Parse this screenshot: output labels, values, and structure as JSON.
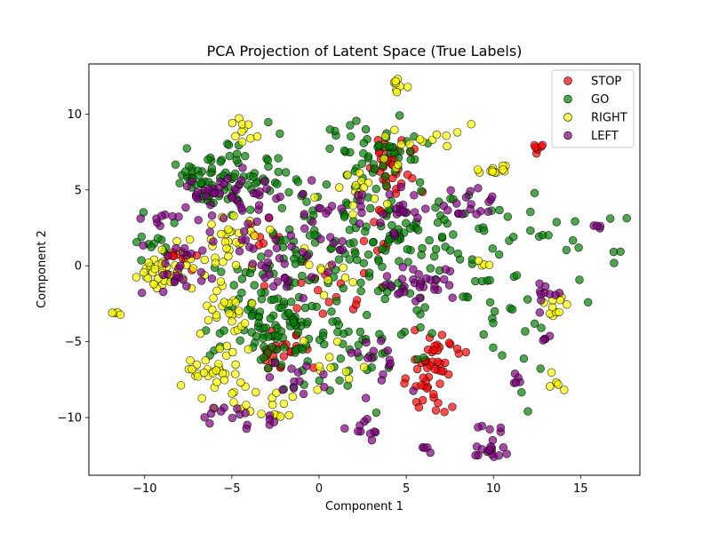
{
  "chart_data": {
    "type": "scatter",
    "title": "PCA Projection of Latent Space (True Labels)",
    "xlabel": "Component 1",
    "ylabel": "Component 2",
    "xlim": [
      -13.2,
      18.4
    ],
    "ylim": [
      -13.8,
      13.3
    ],
    "xticks": [
      -10,
      -5,
      0,
      5,
      10,
      15
    ],
    "yticks": [
      -10,
      -5,
      0,
      5,
      10
    ],
    "grid": false,
    "legend_position": "top-right",
    "series": [
      {
        "name": "STOP",
        "color": "#ff0000",
        "clusters": [
          {
            "cx": 4.2,
            "cy": 6.5,
            "sx": 0.7,
            "sy": 0.9,
            "n": 35
          },
          {
            "cx": 6.3,
            "cy": -7.3,
            "sx": 0.6,
            "sy": 1.3,
            "n": 40
          },
          {
            "cx": 7.0,
            "cy": -5.3,
            "sx": 0.5,
            "sy": 0.4,
            "n": 12
          },
          {
            "cx": -2.2,
            "cy": -5.6,
            "sx": 0.8,
            "sy": 0.8,
            "n": 25
          },
          {
            "cx": -7.7,
            "cy": 0.6,
            "sx": 0.5,
            "sy": 0.4,
            "n": 10
          },
          {
            "cx": -3.2,
            "cy": 2.0,
            "sx": 0.5,
            "sy": 0.6,
            "n": 8
          },
          {
            "cx": 12.5,
            "cy": 7.9,
            "sx": 0.3,
            "sy": 0.2,
            "n": 6
          },
          {
            "cx": 1.5,
            "cy": -2.0,
            "sx": 1.6,
            "sy": 0.9,
            "n": 10
          },
          {
            "cx": 3.8,
            "cy": 2.2,
            "sx": 1.0,
            "sy": 1.2,
            "n": 10
          },
          {
            "cx": 0.0,
            "cy": -1.0,
            "sx": 0.8,
            "sy": 0.8,
            "n": 6
          }
        ]
      },
      {
        "name": "GO",
        "color": "#008000",
        "clusters": [
          {
            "cx": -5.2,
            "cy": 5.8,
            "sx": 1.6,
            "sy": 1.1,
            "n": 90
          },
          {
            "cx": -2.8,
            "cy": -3.6,
            "sx": 1.5,
            "sy": 2.0,
            "n": 110
          },
          {
            "cx": 3.5,
            "cy": 7.5,
            "sx": 1.3,
            "sy": 1.0,
            "n": 45
          },
          {
            "cx": 3.0,
            "cy": 2.5,
            "sx": 2.0,
            "sy": 2.2,
            "n": 60
          },
          {
            "cx": 2.0,
            "cy": -4.8,
            "sx": 2.3,
            "sy": 2.4,
            "n": 55
          },
          {
            "cx": -0.5,
            "cy": 1.8,
            "sx": 1.8,
            "sy": 2.0,
            "n": 40
          },
          {
            "cx": 6.2,
            "cy": 0.8,
            "sx": 1.8,
            "sy": 2.2,
            "n": 45
          },
          {
            "cx": 10.2,
            "cy": 0.5,
            "sx": 2.4,
            "sy": 2.7,
            "n": 40
          },
          {
            "cx": 15.0,
            "cy": 1.5,
            "sx": 1.2,
            "sy": 1.2,
            "n": 12
          },
          {
            "cx": -9.6,
            "cy": 1.8,
            "sx": 0.6,
            "sy": 1.0,
            "n": 12
          },
          {
            "cx": 11.5,
            "cy": -5.0,
            "sx": 1.5,
            "sy": 3.5,
            "n": 8
          }
        ]
      },
      {
        "name": "RIGHT",
        "color": "#ffff00",
        "clusters": [
          {
            "cx": -8.8,
            "cy": -0.3,
            "sx": 1.0,
            "sy": 0.8,
            "n": 40
          },
          {
            "cx": -6.2,
            "cy": -6.8,
            "sx": 1.2,
            "sy": 0.8,
            "n": 30
          },
          {
            "cx": -4.4,
            "cy": 8.5,
            "sx": 0.4,
            "sy": 0.7,
            "n": 10
          },
          {
            "cx": -5.3,
            "cy": -2.5,
            "sx": 1.0,
            "sy": 1.4,
            "n": 30
          },
          {
            "cx": -5.0,
            "cy": 1.8,
            "sx": 1.1,
            "sy": 1.2,
            "n": 30
          },
          {
            "cx": -3.8,
            "cy": -9.0,
            "sx": 1.0,
            "sy": 0.7,
            "n": 15
          },
          {
            "cx": 4.5,
            "cy": 11.9,
            "sx": 0.2,
            "sy": 0.2,
            "n": 8
          },
          {
            "cx": 5.5,
            "cy": 8.5,
            "sx": 1.6,
            "sy": 0.5,
            "n": 12
          },
          {
            "cx": 2.4,
            "cy": 5.5,
            "sx": 1.4,
            "sy": 1.0,
            "n": 18
          },
          {
            "cx": 0.5,
            "cy": -0.2,
            "sx": 0.6,
            "sy": 0.6,
            "n": 10
          },
          {
            "cx": 10.0,
            "cy": 6.2,
            "sx": 0.5,
            "sy": 0.2,
            "n": 12
          },
          {
            "cx": 13.7,
            "cy": -2.8,
            "sx": 0.5,
            "sy": 0.4,
            "n": 10
          },
          {
            "cx": 13.4,
            "cy": -7.6,
            "sx": 0.3,
            "sy": 0.6,
            "n": 6
          },
          {
            "cx": -11.6,
            "cy": -3.1,
            "sx": 0.2,
            "sy": 0.1,
            "n": 4
          },
          {
            "cx": 1.0,
            "cy": -6.8,
            "sx": 0.8,
            "sy": 1.8,
            "n": 10
          },
          {
            "cx": 9.5,
            "cy": 0.1,
            "sx": 0.3,
            "sy": 0.2,
            "n": 4
          },
          {
            "cx": -2.2,
            "cy": -9.9,
            "sx": 0.2,
            "sy": 0.2,
            "n": 4
          }
        ]
      },
      {
        "name": "LEFT",
        "color": "#800080",
        "clusters": [
          {
            "cx": -5.3,
            "cy": 4.5,
            "sx": 1.3,
            "sy": 0.8,
            "n": 50
          },
          {
            "cx": -7.5,
            "cy": 0.0,
            "sx": 1.0,
            "sy": 0.9,
            "n": 25
          },
          {
            "cx": -1.5,
            "cy": 0.2,
            "sx": 1.8,
            "sy": 1.5,
            "n": 40
          },
          {
            "cx": 5.8,
            "cy": -1.0,
            "sx": 1.0,
            "sy": 0.7,
            "n": 30
          },
          {
            "cx": 4.0,
            "cy": 3.5,
            "sx": 1.2,
            "sy": 0.9,
            "n": 25
          },
          {
            "cx": 2.6,
            "cy": -10.8,
            "sx": 0.4,
            "sy": 0.8,
            "n": 10
          },
          {
            "cx": 10.0,
            "cy": -10.9,
            "sx": 0.7,
            "sy": 0.7,
            "n": 10
          },
          {
            "cx": 9.8,
            "cy": -12.2,
            "sx": 0.4,
            "sy": 0.3,
            "n": 12
          },
          {
            "cx": 8.7,
            "cy": 4.1,
            "sx": 0.8,
            "sy": 0.6,
            "n": 18
          },
          {
            "cx": 12.9,
            "cy": -1.9,
            "sx": 0.4,
            "sy": 0.5,
            "n": 10
          },
          {
            "cx": -4.8,
            "cy": -9.9,
            "sx": 1.0,
            "sy": 0.6,
            "n": 12
          },
          {
            "cx": -1.0,
            "cy": -7.2,
            "sx": 1.0,
            "sy": 0.6,
            "n": 12
          },
          {
            "cx": 3.4,
            "cy": -6.5,
            "sx": 1.0,
            "sy": 1.2,
            "n": 15
          },
          {
            "cx": 6.2,
            "cy": -12.1,
            "sx": 0.2,
            "sy": 0.2,
            "n": 4
          },
          {
            "cx": 11.3,
            "cy": -7.5,
            "sx": 0.2,
            "sy": 0.3,
            "n": 5
          },
          {
            "cx": -2.8,
            "cy": -10.3,
            "sx": 0.2,
            "sy": 0.2,
            "n": 4
          },
          {
            "cx": 13.1,
            "cy": -4.6,
            "sx": 0.2,
            "sy": 0.2,
            "n": 4
          },
          {
            "cx": 16.0,
            "cy": 2.5,
            "sx": 0.3,
            "sy": 0.3,
            "n": 4
          },
          {
            "cx": -9.0,
            "cy": 3.2,
            "sx": 0.5,
            "sy": 0.3,
            "n": 6
          },
          {
            "cx": 0.5,
            "cy": 4.0,
            "sx": 0.8,
            "sy": 0.8,
            "n": 8
          }
        ]
      }
    ]
  }
}
